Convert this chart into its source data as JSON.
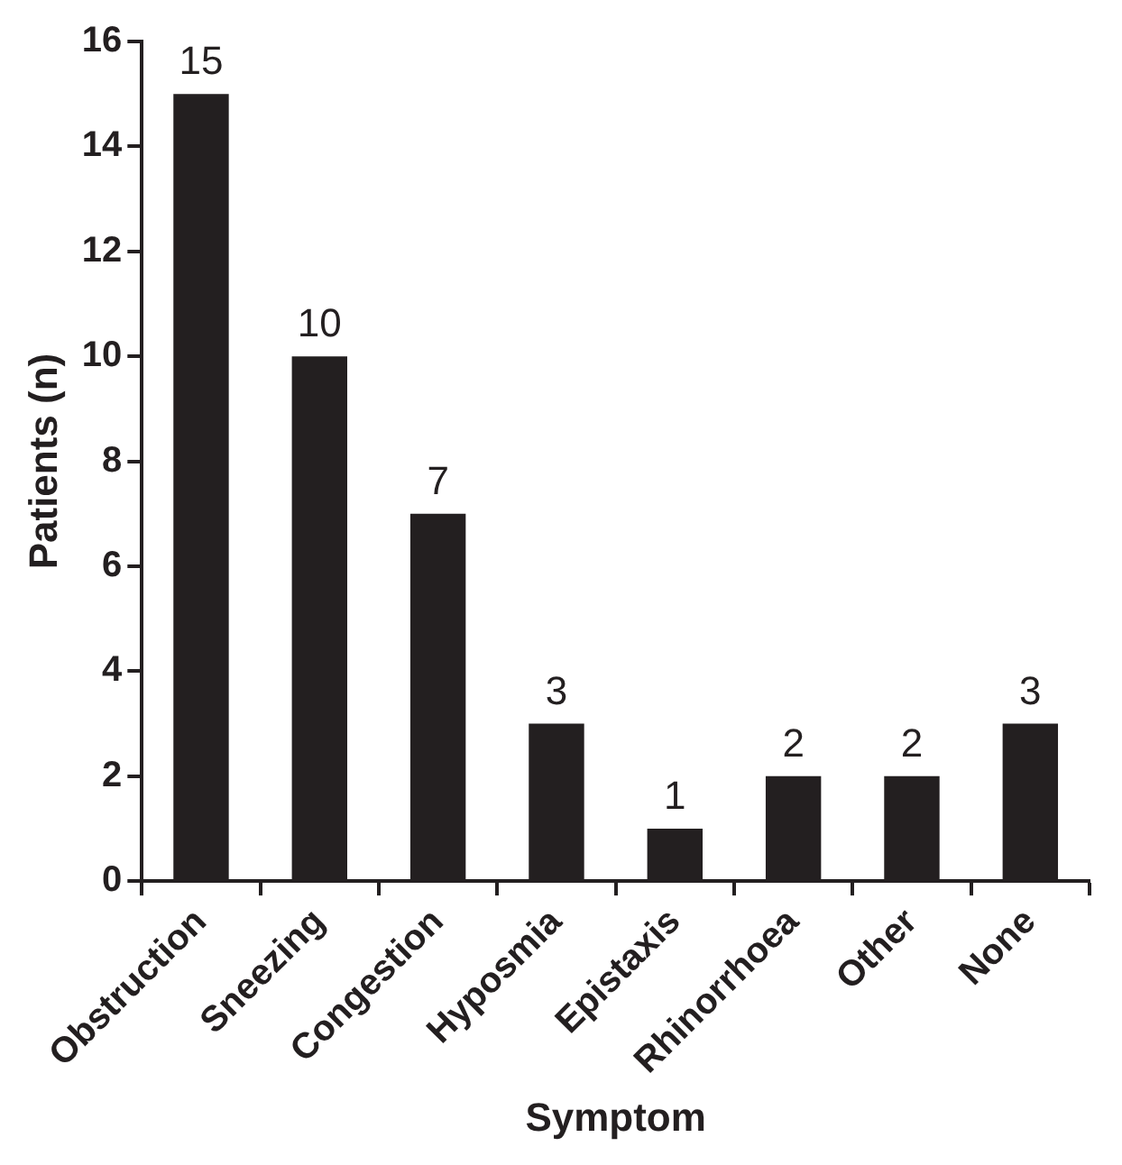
{
  "chart_data": {
    "type": "bar",
    "xlabel": "Symptom",
    "ylabel": "Patients (n)",
    "categories": [
      "Obstruction",
      "Sneezing",
      "Congestion",
      "Hyposmia",
      "Epistaxis",
      "Rhinorrhoea",
      "Other",
      "None"
    ],
    "values": [
      15,
      10,
      7,
      3,
      1,
      2,
      2,
      3
    ],
    "color": "#231f20",
    "ylim": [
      0,
      16
    ],
    "yticks": [
      0,
      2,
      4,
      6,
      8,
      10,
      12,
      14,
      16
    ],
    "grid": false,
    "legend": false,
    "data_labels": true
  }
}
